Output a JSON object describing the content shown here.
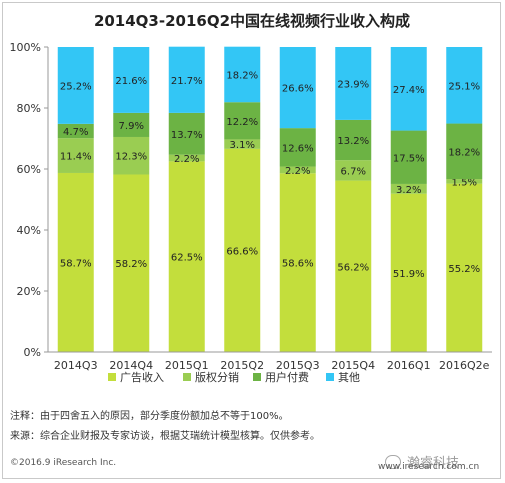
{
  "chart_data": {
    "type": "bar",
    "stacked": true,
    "title": "2014Q3-2016Q2中国在线视频行业收入构成",
    "categories": [
      "2014Q3",
      "2014Q4",
      "2015Q1",
      "2015Q2",
      "2015Q3",
      "2015Q4",
      "2016Q1",
      "2016Q2e"
    ],
    "y_tick_labels": [
      "0%",
      "20%",
      "40%",
      "60%",
      "80%",
      "100%"
    ],
    "ylim": [
      0,
      100
    ],
    "grid": false,
    "legend_position": "bottom",
    "series": [
      {
        "name": "广告收入",
        "color": "#c3de3c",
        "values": [
          58.7,
          58.2,
          62.5,
          66.6,
          58.6,
          56.2,
          51.9,
          55.2
        ],
        "labels": [
          "58.7%",
          "58.2%",
          "62.5%",
          "66.6%",
          "58.6%",
          "56.2%",
          "51.9%",
          "55.2%"
        ]
      },
      {
        "name": "版权分销",
        "color": "#9acd52",
        "values": [
          11.4,
          12.3,
          2.2,
          3.1,
          2.2,
          6.7,
          3.2,
          1.5
        ],
        "labels": [
          "11.4%",
          "12.3%",
          "2.2%",
          "3.1%",
          "2.2%",
          "6.7%",
          "3.2%",
          "1.5%"
        ]
      },
      {
        "name": "用户付费",
        "color": "#6cb344",
        "values": [
          4.7,
          7.9,
          13.7,
          12.2,
          12.6,
          13.2,
          17.5,
          18.2
        ],
        "labels": [
          "4.7%",
          "7.9%",
          "13.7%",
          "12.2%",
          "12.6%",
          "13.2%",
          "17.5%",
          "18.2%"
        ]
      },
      {
        "name": "其他",
        "color": "#33c6f5",
        "values": [
          25.2,
          21.6,
          21.7,
          18.2,
          26.6,
          23.9,
          27.4,
          25.1
        ],
        "labels": [
          "25.2%",
          "21.6%",
          "21.7%",
          "18.2%",
          "26.6%",
          "23.9%",
          "27.4%",
          "25.1%"
        ]
      }
    ]
  },
  "notes": {
    "note1": "注释：由于四舍五入的原因，部分季度份额加总不等于100%。",
    "note2": "来源：综合企业财报及专家访谈，根据艾瑞统计模型核算。仅供参考。"
  },
  "footer": {
    "copyright": "©2016.9 iResearch Inc.",
    "site": "www.iresearch.com.cn",
    "watermark": "瀚睿科技"
  }
}
